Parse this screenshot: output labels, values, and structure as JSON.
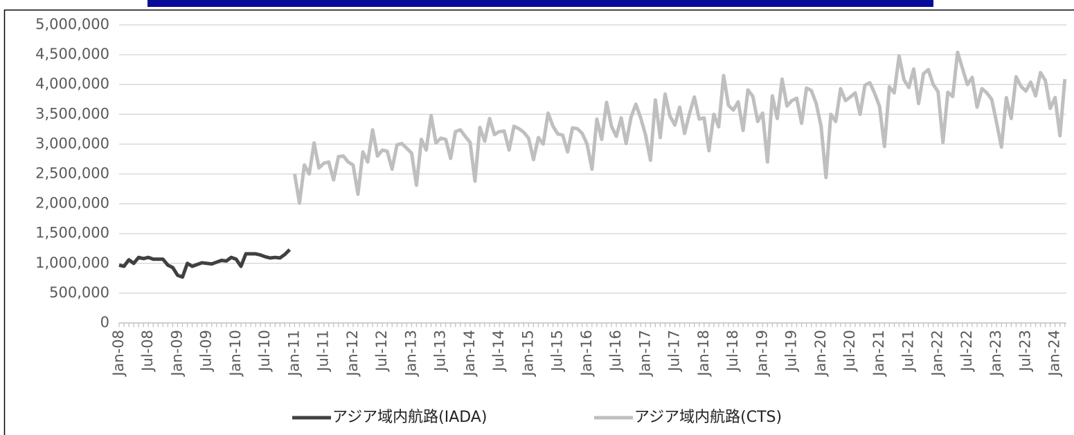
{
  "chart_data": {
    "type": "line",
    "categories": [
      "Jan-08",
      null,
      null,
      null,
      null,
      null,
      "Jul-08",
      null,
      null,
      null,
      null,
      null,
      "Jan-09",
      null,
      null,
      null,
      null,
      null,
      "Jul-09",
      null,
      null,
      null,
      null,
      null,
      "Jan-10",
      null,
      null,
      null,
      null,
      null,
      "Jul-10",
      null,
      null,
      null,
      null,
      null,
      "Jan-11",
      null,
      null,
      null,
      null,
      null,
      "Jul-11",
      null,
      null,
      null,
      null,
      null,
      "Jan-12",
      null,
      null,
      null,
      null,
      null,
      "Jul-12",
      null,
      null,
      null,
      null,
      null,
      "Jan-13",
      null,
      null,
      null,
      null,
      null,
      "Jul-13",
      null,
      null,
      null,
      null,
      null,
      "Jan-14",
      null,
      null,
      null,
      null,
      null,
      "Jul-14",
      null,
      null,
      null,
      null,
      null,
      "Jan-15",
      null,
      null,
      null,
      null,
      null,
      "Jul-15",
      null,
      null,
      null,
      null,
      null,
      "Jan-16",
      null,
      null,
      null,
      null,
      null,
      "Jul-16",
      null,
      null,
      null,
      null,
      null,
      "Jan-17",
      null,
      null,
      null,
      null,
      null,
      "Jul-17",
      null,
      null,
      null,
      null,
      null,
      "Jan-18",
      null,
      null,
      null,
      null,
      null,
      "Jul-18",
      null,
      null,
      null,
      null,
      null,
      "Jan-19",
      null,
      null,
      null,
      null,
      null,
      "Jul-19",
      null,
      null,
      null,
      null,
      null,
      "Jan-20",
      null,
      null,
      null,
      null,
      null,
      "Jul-20",
      null,
      null,
      null,
      null,
      null,
      "Jan-21",
      null,
      null,
      null,
      null,
      null,
      "Jul-21",
      null,
      null,
      null,
      null,
      null,
      "Jan-22",
      null,
      null,
      null,
      null,
      null,
      "Jul-22",
      null,
      null,
      null,
      null,
      null,
      "Jan-23",
      null,
      null,
      null,
      null,
      null,
      "Jul-23",
      null,
      null,
      null,
      null,
      null,
      "Jan-24",
      null,
      null
    ],
    "series": [
      {
        "name": "アジア域内航路(IADA)",
        "color": "#404040",
        "values": [
          970000,
          950000,
          1060000,
          1000000,
          1100000,
          1080000,
          1100000,
          1070000,
          1070000,
          1070000,
          970000,
          930000,
          800000,
          770000,
          1000000,
          950000,
          980000,
          1010000,
          1000000,
          990000,
          1020000,
          1050000,
          1040000,
          1100000,
          1070000,
          950000,
          1160000,
          1160000,
          1160000,
          1140000,
          1110000,
          1090000,
          1100000,
          1090000,
          1150000,
          1230000,
          null,
          null,
          null,
          null,
          null,
          null,
          null,
          null,
          null,
          null,
          null,
          null,
          null,
          null,
          null,
          null,
          null,
          null,
          null,
          null,
          null,
          null,
          null,
          null,
          null,
          null,
          null,
          null,
          null,
          null,
          null,
          null,
          null,
          null,
          null,
          null,
          null,
          null,
          null,
          null,
          null,
          null,
          null,
          null,
          null,
          null,
          null,
          null,
          null,
          null,
          null,
          null,
          null,
          null,
          null,
          null,
          null,
          null,
          null,
          null,
          null,
          null,
          null,
          null,
          null,
          null,
          null,
          null,
          null,
          null,
          null,
          null,
          null,
          null,
          null,
          null,
          null,
          null,
          null,
          null,
          null,
          null,
          null,
          null,
          null,
          null,
          null,
          null,
          null,
          null,
          null,
          null,
          null,
          null,
          null,
          null,
          null,
          null,
          null,
          null,
          null,
          null,
          null,
          null,
          null,
          null,
          null,
          null,
          null,
          null,
          null,
          null,
          null,
          null,
          null,
          null,
          null,
          null,
          null,
          null,
          null,
          null,
          null,
          null,
          null,
          null,
          null,
          null,
          null,
          null,
          null,
          null,
          null,
          null,
          null,
          null,
          null,
          null,
          null,
          null,
          null,
          null,
          null,
          null,
          null,
          null,
          null,
          null,
          null,
          null,
          null,
          null,
          null,
          null,
          null,
          null,
          null,
          null,
          null
        ]
      },
      {
        "name": "アジア域内航路(CTS)",
        "color": "#bfbfbf",
        "values": [
          null,
          null,
          null,
          null,
          null,
          null,
          null,
          null,
          null,
          null,
          null,
          null,
          null,
          null,
          null,
          null,
          null,
          null,
          null,
          null,
          null,
          null,
          null,
          null,
          null,
          null,
          null,
          null,
          null,
          null,
          null,
          null,
          null,
          null,
          null,
          null,
          2500000,
          2010000,
          2650000,
          2500000,
          3020000,
          2600000,
          2680000,
          2700000,
          2400000,
          2790000,
          2800000,
          2700000,
          2650000,
          2160000,
          2870000,
          2700000,
          3240000,
          2800000,
          2900000,
          2880000,
          2580000,
          2990000,
          3010000,
          2930000,
          2850000,
          2310000,
          3080000,
          2900000,
          3480000,
          3020000,
          3100000,
          3080000,
          2760000,
          3210000,
          3240000,
          3130000,
          3030000,
          2380000,
          3280000,
          3050000,
          3430000,
          3160000,
          3210000,
          3220000,
          2900000,
          3300000,
          3260000,
          3200000,
          3100000,
          2740000,
          3110000,
          3000000,
          3520000,
          3300000,
          3170000,
          3150000,
          2870000,
          3270000,
          3260000,
          3180000,
          3000000,
          2580000,
          3420000,
          3080000,
          3700000,
          3300000,
          3130000,
          3440000,
          3010000,
          3450000,
          3670000,
          3440000,
          3150000,
          2730000,
          3740000,
          3110000,
          3840000,
          3470000,
          3320000,
          3620000,
          3180000,
          3510000,
          3790000,
          3420000,
          3440000,
          2890000,
          3500000,
          3290000,
          4150000,
          3650000,
          3570000,
          3710000,
          3230000,
          3910000,
          3800000,
          3380000,
          3520000,
          2700000,
          3810000,
          3430000,
          4090000,
          3640000,
          3730000,
          3770000,
          3350000,
          3940000,
          3900000,
          3680000,
          3300000,
          2440000,
          3500000,
          3380000,
          3930000,
          3730000,
          3790000,
          3860000,
          3500000,
          3990000,
          4030000,
          3850000,
          3630000,
          2960000,
          3960000,
          3860000,
          4480000,
          4080000,
          3950000,
          4260000,
          3680000,
          4180000,
          4250000,
          4000000,
          3880000,
          3030000,
          3870000,
          3800000,
          4540000,
          4270000,
          4000000,
          4120000,
          3620000,
          3930000,
          3860000,
          3750000,
          3360000,
          2950000,
          3780000,
          3430000,
          4130000,
          3970000,
          3890000,
          4040000,
          3810000,
          4200000,
          4070000,
          3600000,
          3780000,
          3140000,
          4090000
        ]
      }
    ],
    "ylim": [
      0,
      5000000
    ],
    "yticks": [
      0,
      {
        "value": 500000,
        "label": "500,000"
      },
      {
        "value": 1000000,
        "label": "1,000,000"
      },
      {
        "value": 1500000,
        "label": "1,500,000"
      },
      {
        "value": 2000000,
        "label": "2,000,000"
      },
      {
        "value": 2500000,
        "label": "2,500,000"
      },
      {
        "value": 3000000,
        "label": "3,000,000"
      },
      {
        "value": 3500000,
        "label": "3,500,000"
      },
      {
        "value": 4000000,
        "label": "4,000,000"
      },
      {
        "value": 4500000,
        "label": "4,500,000"
      },
      {
        "value": 5000000,
        "label": "5,000,000"
      }
    ],
    "grid": true,
    "legend": "bottom"
  }
}
